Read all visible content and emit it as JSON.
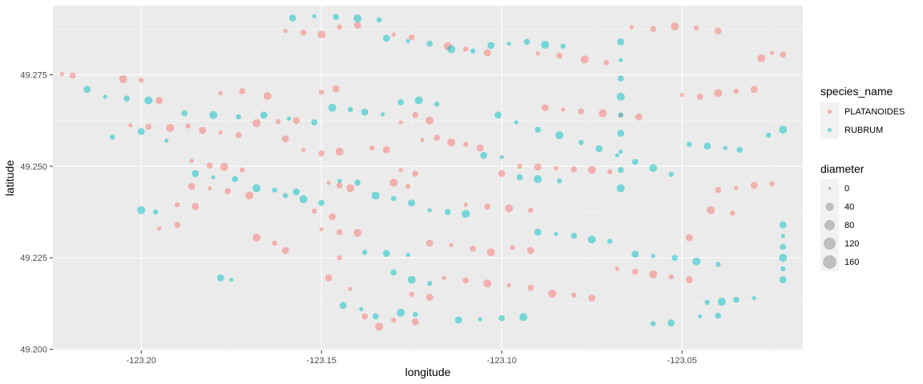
{
  "chart_data": {
    "type": "scatter",
    "title": "",
    "xlabel": "longitude",
    "ylabel": "latitude",
    "xlim": [
      -123.2245,
      -123.0165
    ],
    "ylim": [
      49.1997,
      49.2939
    ],
    "x_ticks": [
      -123.2,
      -123.15,
      -123.1,
      -123.05
    ],
    "x_tick_labels": [
      "-123.20",
      "-123.15",
      "-123.10",
      "-123.05"
    ],
    "y_ticks": [
      49.2,
      49.225,
      49.25,
      49.275
    ],
    "y_tick_labels": [
      "49.200",
      "49.225",
      "49.250",
      "49.275"
    ],
    "grid": true,
    "point_alpha": 0.5,
    "legend_position": "right",
    "legend_color": {
      "title": "species_name",
      "entries": [
        {
          "label": "PLATANOIDES",
          "color": "#F8766D"
        },
        {
          "label": "RUBRUM",
          "color": "#00BFC4"
        }
      ]
    },
    "legend_size": {
      "title": "diameter",
      "entries": [
        {
          "label": "0",
          "value": 0
        },
        {
          "label": "40",
          "value": 40
        },
        {
          "label": "80",
          "value": 80
        },
        {
          "label": "120",
          "value": 120
        },
        {
          "label": "160",
          "value": 160
        }
      ]
    },
    "series": [
      {
        "name": "PLATANOIDES",
        "points": [
          [
            -123.222,
            49.2752
          ],
          [
            -123.219,
            49.2748
          ],
          [
            -123.205,
            49.2738
          ],
          [
            -123.2,
            49.2735
          ],
          [
            -123.195,
            49.268
          ],
          [
            -123.203,
            49.2612
          ],
          [
            -123.198,
            49.2608
          ],
          [
            -123.192,
            49.2605
          ],
          [
            -123.187,
            49.261
          ],
          [
            -123.183,
            49.2598
          ],
          [
            -123.178,
            49.2592
          ],
          [
            -123.173,
            49.2585
          ],
          [
            -123.168,
            49.2618
          ],
          [
            -123.162,
            49.2622
          ],
          [
            -123.157,
            49.2625
          ],
          [
            -123.178,
            49.27
          ],
          [
            -123.172,
            49.2705
          ],
          [
            -123.165,
            49.2692
          ],
          [
            -123.15,
            49.2702
          ],
          [
            -123.146,
            49.2712
          ],
          [
            -123.186,
            49.2515
          ],
          [
            -123.181,
            49.2502
          ],
          [
            -123.177,
            49.2498
          ],
          [
            -123.172,
            49.249
          ],
          [
            -123.186,
            49.2445
          ],
          [
            -123.181,
            49.244
          ],
          [
            -123.176,
            49.2432
          ],
          [
            -123.17,
            49.242
          ],
          [
            -123.19,
            49.2395
          ],
          [
            -123.185,
            49.239
          ],
          [
            -123.148,
            49.2455
          ],
          [
            -123.145,
            49.2448
          ],
          [
            -123.142,
            49.244
          ],
          [
            -123.152,
            49.2378
          ],
          [
            -123.147,
            49.2362
          ],
          [
            -123.15,
            49.2328
          ],
          [
            -123.145,
            49.232
          ],
          [
            -123.14,
            49.2318
          ],
          [
            -123.145,
            49.225
          ],
          [
            -123.148,
            49.2195
          ],
          [
            -123.142,
            49.2165
          ],
          [
            -123.138,
            49.209
          ],
          [
            -123.134,
            49.2062
          ],
          [
            -123.13,
            49.208
          ],
          [
            -123.124,
            49.2075
          ],
          [
            -123.122,
            49.2572
          ],
          [
            -123.118,
            49.2578
          ],
          [
            -123.114,
            49.2565
          ],
          [
            -123.11,
            49.256
          ],
          [
            -123.106,
            49.255
          ],
          [
            -123.128,
            49.262
          ],
          [
            -123.124,
            49.264
          ],
          [
            -123.12,
            49.2625
          ],
          [
            -123.095,
            49.25
          ],
          [
            -123.09,
            49.2498
          ],
          [
            -123.085,
            49.2495
          ],
          [
            -123.08,
            49.2492
          ],
          [
            -123.075,
            49.249
          ],
          [
            -123.07,
            49.2485
          ],
          [
            -123.1,
            49.248
          ],
          [
            -123.11,
            49.2395
          ],
          [
            -123.104,
            49.239
          ],
          [
            -123.098,
            49.2385
          ],
          [
            -123.092,
            49.238
          ],
          [
            -123.12,
            49.229
          ],
          [
            -123.114,
            49.2285
          ],
          [
            -123.108,
            49.2275
          ],
          [
            -123.103,
            49.2265
          ],
          [
            -123.097,
            49.2278
          ],
          [
            -123.092,
            49.227
          ],
          [
            -123.098,
            49.2175
          ],
          [
            -123.092,
            49.2168
          ],
          [
            -123.086,
            49.2152
          ],
          [
            -123.08,
            49.2148
          ],
          [
            -123.075,
            49.214
          ],
          [
            -123.068,
            49.222
          ],
          [
            -123.063,
            49.2212
          ],
          [
            -123.058,
            49.2205
          ],
          [
            -123.053,
            49.2198
          ],
          [
            -123.048,
            49.219
          ],
          [
            -123.064,
            49.288
          ],
          [
            -123.058,
            49.2875
          ],
          [
            -123.052,
            49.2882
          ],
          [
            -123.046,
            49.2878
          ],
          [
            -123.04,
            49.287
          ],
          [
            -123.05,
            49.2695
          ],
          [
            -123.045,
            49.269
          ],
          [
            -123.04,
            49.27
          ],
          [
            -123.035,
            49.2705
          ],
          [
            -123.03,
            49.271
          ],
          [
            -123.025,
            49.281
          ],
          [
            -123.022,
            49.2805
          ],
          [
            -123.028,
            49.2795
          ],
          [
            -123.025,
            49.2452
          ],
          [
            -123.03,
            49.2448
          ],
          [
            -123.035,
            49.244
          ],
          [
            -123.04,
            49.2435
          ],
          [
            -123.042,
            49.238
          ],
          [
            -123.036,
            49.2372
          ],
          [
            -123.048,
            49.2305
          ],
          [
            -123.16,
            49.287
          ],
          [
            -123.155,
            49.2865
          ],
          [
            -123.15,
            49.286
          ],
          [
            -123.145,
            49.288
          ],
          [
            -123.14,
            49.2885
          ],
          [
            -123.13,
            49.286
          ],
          [
            -123.125,
            49.2852
          ],
          [
            -123.115,
            49.2828
          ],
          [
            -123.11,
            49.282
          ],
          [
            -123.104,
            49.281
          ],
          [
            -123.09,
            49.2808
          ],
          [
            -123.084,
            49.2802
          ],
          [
            -123.077,
            49.2792
          ],
          [
            -123.071,
            49.2783
          ],
          [
            -123.16,
            49.2575
          ],
          [
            -123.155,
            49.2545
          ],
          [
            -123.15,
            49.2535
          ],
          [
            -123.145,
            49.254
          ],
          [
            -123.136,
            49.255
          ],
          [
            -123.132,
            49.2545
          ],
          [
            -123.128,
            49.249
          ],
          [
            -123.124,
            49.248
          ],
          [
            -123.13,
            49.2455
          ],
          [
            -123.126,
            49.2445
          ],
          [
            -123.088,
            49.266
          ],
          [
            -123.083,
            49.2655
          ],
          [
            -123.078,
            49.265
          ],
          [
            -123.072,
            49.2645
          ],
          [
            -123.067,
            49.264
          ],
          [
            -123.062,
            49.2635
          ],
          [
            -123.116,
            49.2195
          ],
          [
            -123.11,
            49.2188
          ],
          [
            -123.104,
            49.218
          ],
          [
            -123.125,
            49.215
          ],
          [
            -123.12,
            49.2142
          ],
          [
            -123.195,
            49.233
          ],
          [
            -123.19,
            49.234
          ],
          [
            -123.168,
            49.2305
          ],
          [
            -123.163,
            49.229
          ],
          [
            -123.16,
            49.227
          ]
        ]
      },
      {
        "name": "RUBRUM",
        "points": [
          [
            -123.215,
            49.271
          ],
          [
            -123.21,
            49.269
          ],
          [
            -123.204,
            49.2685
          ],
          [
            -123.198,
            49.268
          ],
          [
            -123.208,
            49.258
          ],
          [
            -123.2,
            49.2595
          ],
          [
            -123.193,
            49.257
          ],
          [
            -123.188,
            49.2645
          ],
          [
            -123.18,
            49.264
          ],
          [
            -123.173,
            49.2635
          ],
          [
            -123.166,
            49.264
          ],
          [
            -123.159,
            49.263
          ],
          [
            -123.152,
            49.262
          ],
          [
            -123.147,
            49.266
          ],
          [
            -123.142,
            49.2655
          ],
          [
            -123.138,
            49.2648
          ],
          [
            -123.133,
            49.2642
          ],
          [
            -123.128,
            49.2675
          ],
          [
            -123.123,
            49.268
          ],
          [
            -123.118,
            49.267
          ],
          [
            -123.158,
            49.2905
          ],
          [
            -123.152,
            49.291
          ],
          [
            -123.146,
            49.2908
          ],
          [
            -123.14,
            49.2904
          ],
          [
            -123.134,
            49.29
          ],
          [
            -123.132,
            49.285
          ],
          [
            -123.126,
            49.2842
          ],
          [
            -123.12,
            49.2835
          ],
          [
            -123.114,
            49.282
          ],
          [
            -123.108,
            49.2815
          ],
          [
            -123.103,
            49.283
          ],
          [
            -123.098,
            49.2835
          ],
          [
            -123.093,
            49.284
          ],
          [
            -123.088,
            49.2832
          ],
          [
            -123.083,
            49.2828
          ],
          [
            -123.101,
            49.264
          ],
          [
            -123.096,
            49.262
          ],
          [
            -123.09,
            49.26
          ],
          [
            -123.084,
            49.2585
          ],
          [
            -123.078,
            49.2565
          ],
          [
            -123.073,
            49.2548
          ],
          [
            -123.068,
            49.253
          ],
          [
            -123.063,
            49.2512
          ],
          [
            -123.058,
            49.2495
          ],
          [
            -123.053,
            49.2478
          ],
          [
            -123.067,
            49.284
          ],
          [
            -123.067,
            49.279
          ],
          [
            -123.067,
            49.274
          ],
          [
            -123.067,
            49.269
          ],
          [
            -123.067,
            49.264
          ],
          [
            -123.067,
            49.259
          ],
          [
            -123.067,
            49.254
          ],
          [
            -123.067,
            49.249
          ],
          [
            -123.067,
            49.244
          ],
          [
            -123.048,
            49.256
          ],
          [
            -123.043,
            49.2555
          ],
          [
            -123.038,
            49.255
          ],
          [
            -123.034,
            49.2545
          ],
          [
            -123.022,
            49.26
          ],
          [
            -123.026,
            49.2585
          ],
          [
            -123.022,
            49.234
          ],
          [
            -123.022,
            49.231
          ],
          [
            -123.022,
            49.228
          ],
          [
            -123.022,
            49.225
          ],
          [
            -123.022,
            49.222
          ],
          [
            -123.022,
            49.219
          ],
          [
            -123.03,
            49.214
          ],
          [
            -123.035,
            49.2135
          ],
          [
            -123.039,
            49.213
          ],
          [
            -123.043,
            49.2128
          ],
          [
            -123.185,
            49.248
          ],
          [
            -123.18,
            49.247
          ],
          [
            -123.174,
            49.2465
          ],
          [
            -123.168,
            49.244
          ],
          [
            -123.163,
            49.2435
          ],
          [
            -123.157,
            49.243
          ],
          [
            -123.145,
            49.246
          ],
          [
            -123.14,
            49.2455
          ],
          [
            -123.135,
            49.242
          ],
          [
            -123.13,
            49.2412
          ],
          [
            -123.125,
            49.24
          ],
          [
            -123.12,
            49.238
          ],
          [
            -123.115,
            49.2375
          ],
          [
            -123.11,
            49.237
          ],
          [
            -123.138,
            49.2265
          ],
          [
            -123.132,
            49.2262
          ],
          [
            -123.126,
            49.2258
          ],
          [
            -123.13,
            49.221
          ],
          [
            -123.125,
            49.219
          ],
          [
            -123.12,
            49.218
          ],
          [
            -123.144,
            49.212
          ],
          [
            -123.139,
            49.211
          ],
          [
            -123.135,
            49.209
          ],
          [
            -123.128,
            49.21
          ],
          [
            -123.124,
            49.2095
          ],
          [
            -123.09,
            49.232
          ],
          [
            -123.085,
            49.2315
          ],
          [
            -123.08,
            49.231
          ],
          [
            -123.075,
            49.23
          ],
          [
            -123.07,
            49.2295
          ],
          [
            -123.063,
            49.226
          ],
          [
            -123.058,
            49.2255
          ],
          [
            -123.052,
            49.225
          ],
          [
            -123.046,
            49.224
          ],
          [
            -123.04,
            49.2232
          ],
          [
            -123.105,
            49.253
          ],
          [
            -123.1,
            49.2525
          ],
          [
            -123.095,
            49.247
          ],
          [
            -123.09,
            49.2465
          ],
          [
            -123.084,
            49.246
          ],
          [
            -123.112,
            49.208
          ],
          [
            -123.106,
            49.2082
          ],
          [
            -123.1,
            49.2085
          ],
          [
            -123.094,
            49.2088
          ],
          [
            -123.058,
            49.207
          ],
          [
            -123.053,
            49.2072
          ],
          [
            -123.045,
            49.209
          ],
          [
            -123.04,
            49.2092
          ],
          [
            -123.2,
            49.238
          ],
          [
            -123.196,
            49.2375
          ],
          [
            -123.178,
            49.2195
          ],
          [
            -123.175,
            49.219
          ],
          [
            -123.15,
            49.24
          ],
          [
            -123.155,
            49.241
          ],
          [
            -123.16,
            49.242
          ]
        ]
      }
    ]
  }
}
